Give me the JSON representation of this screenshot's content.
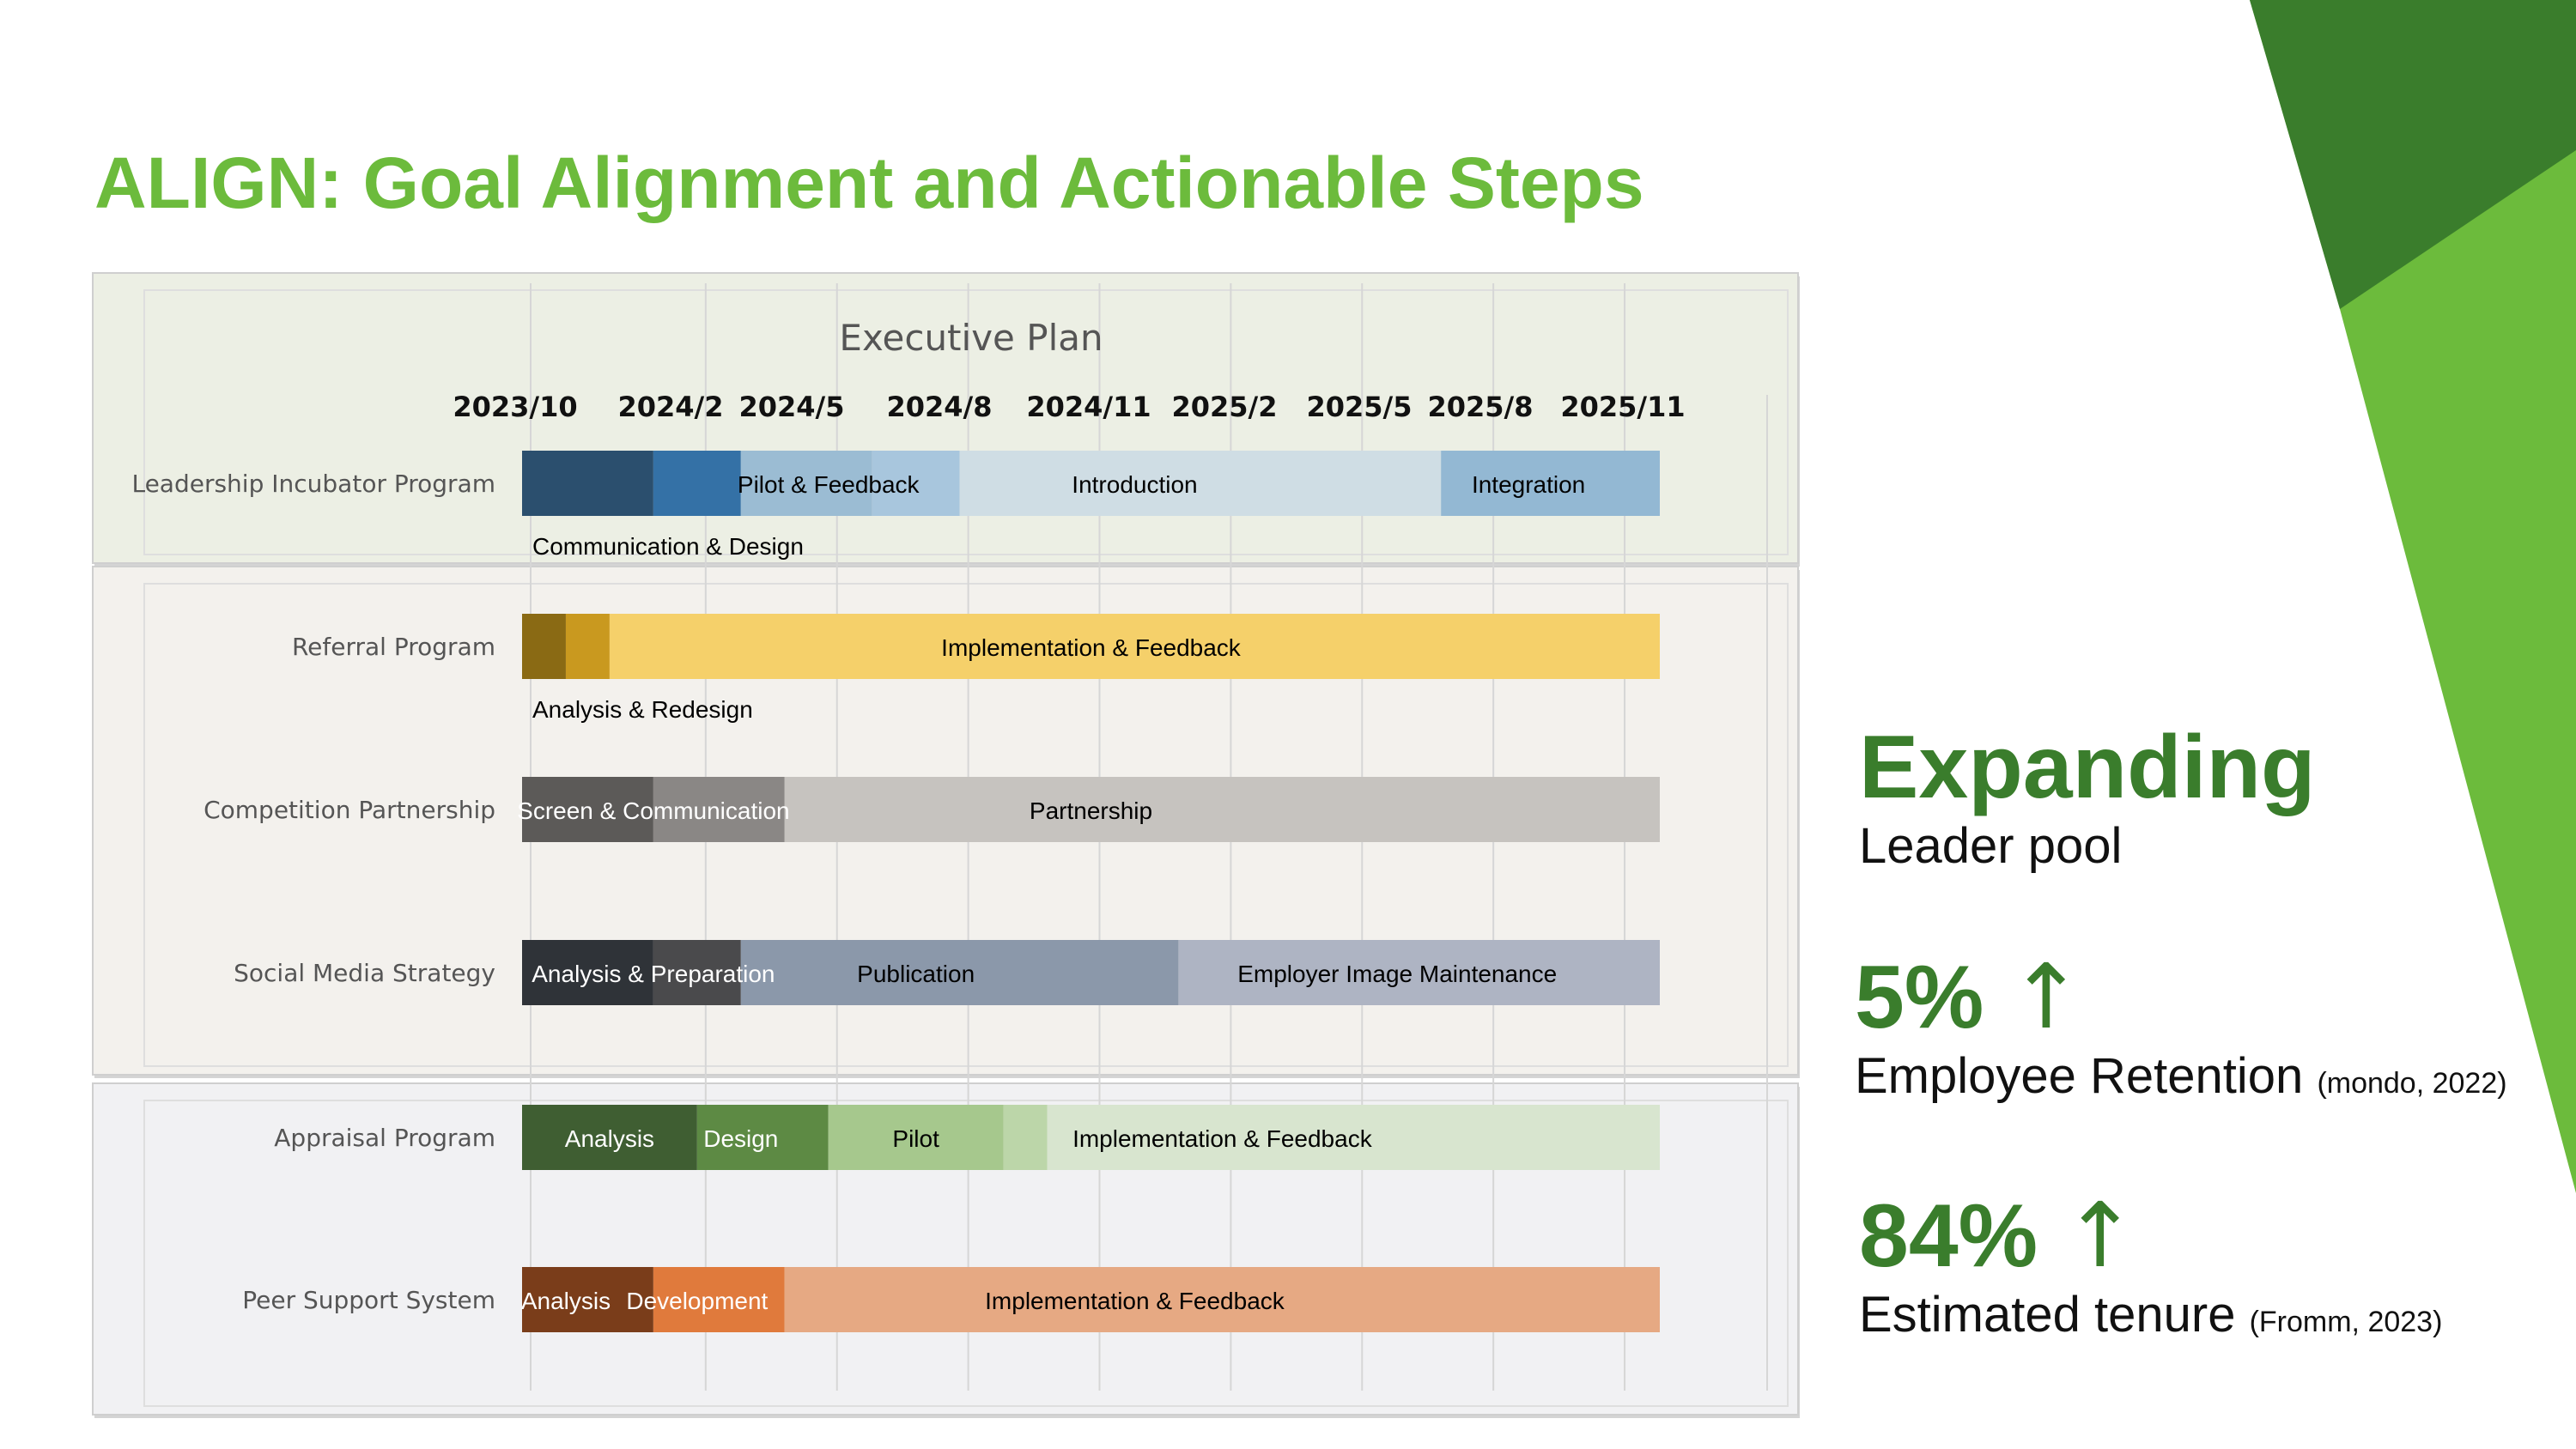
{
  "slide": {
    "title": "ALIGN: Goal Alignment and Actionable Steps"
  },
  "stats": {
    "expanding": {
      "headline": "Expanding",
      "label": "Leader pool"
    },
    "retention": {
      "value": "5%",
      "arrow": "↑",
      "label": "Employee Retention",
      "citation": "(mondo, 2022)"
    },
    "tenure": {
      "value": "84%",
      "arrow": "↑",
      "label": "Estimated tenure",
      "citation": "(Fromm, 2023)"
    }
  },
  "colors": {
    "title": "#6cbb3c",
    "accent_dark": "#3a7d2c",
    "accent_light": "#6cbb3c"
  },
  "chart_data": {
    "type": "gantt",
    "title": "Executive Plan",
    "x_ticks": [
      "2023/10",
      "2024/2",
      "2024/5",
      "2024/8",
      "2024/11",
      "2025/2",
      "2025/5",
      "2025/8",
      "2025/11"
    ],
    "xlim": [
      "2023/10",
      "2025/12"
    ],
    "rows": [
      {
        "program": "Leadership Incubator Program",
        "group": 1,
        "tasks": [
          {
            "name": "",
            "start": "2023/10",
            "end": "2024/1",
            "color": "#2b4f6e"
          },
          {
            "name": "",
            "start": "2024/1",
            "end": "2024/3",
            "color": "#3471a6"
          },
          {
            "name": "",
            "start": "2024/3",
            "end": "2024/6",
            "color": "#9bbcd3"
          },
          {
            "name": "",
            "start": "2024/6",
            "end": "2024/8",
            "color": "#a8c6dd"
          },
          {
            "name": "",
            "start": "2024/8",
            "end": "2025/7",
            "color": "#cfdde4"
          },
          {
            "name": "",
            "start": "2025/7",
            "end": "2025/12",
            "color": "#93b8d3"
          }
        ],
        "labels": [
          {
            "text": "Pilot & Feedback",
            "at": "2024/5",
            "color": "#000000",
            "below": false
          },
          {
            "text": "Introduction",
            "at": "2024/12",
            "color": "#000000",
            "below": false
          },
          {
            "text": "Integration",
            "at": "2025/9",
            "color": "#000000",
            "below": false
          },
          {
            "text": "Communication & Design",
            "at": "2024/1",
            "color": "#000000",
            "below": true
          }
        ]
      },
      {
        "program": "Referral Program",
        "group": 2,
        "tasks": [
          {
            "name": "",
            "start": "2023/10",
            "end": "2023/11",
            "color": "#8a6a14"
          },
          {
            "name": "",
            "start": "2023/11",
            "end": "2023/12",
            "color": "#c9991f"
          },
          {
            "name": "",
            "start": "2023/12",
            "end": "2025/12",
            "color": "#f5d06a"
          }
        ],
        "labels": [
          {
            "text": "Implementation & Feedback",
            "at": "2024/11",
            "color": "#000000",
            "below": false
          },
          {
            "text": "Analysis & Redesign",
            "at": "2024/1",
            "color": "#000000",
            "below": true
          }
        ]
      },
      {
        "program": "Competition Partnership",
        "group": 2,
        "tasks": [
          {
            "name": "",
            "start": "2023/10",
            "end": "2024/1",
            "color": "#5c5a58"
          },
          {
            "name": "",
            "start": "2024/1",
            "end": "2024/4",
            "color": "#8a8785"
          },
          {
            "name": "",
            "start": "2024/4",
            "end": "2025/12",
            "color": "#c6c3bf"
          }
        ],
        "labels": [
          {
            "text": "Screen & Communication",
            "at": "2024/1",
            "color": "#ffffff",
            "below": false
          },
          {
            "text": "Partnership",
            "at": "2024/11",
            "color": "#000000",
            "below": false
          }
        ]
      },
      {
        "program": "Social Media Strategy",
        "group": 2,
        "tasks": [
          {
            "name": "",
            "start": "2023/10",
            "end": "2024/1",
            "color": "#2f3338"
          },
          {
            "name": "",
            "start": "2024/1",
            "end": "2024/3",
            "color": "#4a4a4c"
          },
          {
            "name": "",
            "start": "2024/3",
            "end": "2025/1",
            "color": "#8b98aa"
          },
          {
            "name": "",
            "start": "2025/1",
            "end": "2025/12",
            "color": "#aeb4c3"
          }
        ],
        "labels": [
          {
            "text": "Analysis & Preparation",
            "at": "2024/1",
            "color": "#ffffff",
            "below": false
          },
          {
            "text": "Publication",
            "at": "2024/7",
            "color": "#000000",
            "below": false
          },
          {
            "text": "Employer Image Maintenance",
            "at": "2025/6",
            "color": "#000000",
            "below": false
          }
        ]
      },
      {
        "program": "Appraisal Program",
        "group": 3,
        "tasks": [
          {
            "name": "Analysis",
            "start": "2023/10",
            "end": "2024/2",
            "color": "#3f5e32"
          },
          {
            "name": "Design",
            "start": "2024/2",
            "end": "2024/5",
            "color": "#5d8a44"
          },
          {
            "name": "Pilot",
            "start": "2024/5",
            "end": "2024/9",
            "color": "#a6c88d"
          },
          {
            "name": "",
            "start": "2024/9",
            "end": "2024/10",
            "color": "#bcd6a9"
          },
          {
            "name": "Implementation & Feedback",
            "start": "2024/10",
            "end": "2025/12",
            "color": "#d8e5cf"
          }
        ],
        "labels": [
          {
            "text": "Analysis",
            "at": "2023/12",
            "color": "#ffffff",
            "below": false
          },
          {
            "text": "Design",
            "at": "2024/3",
            "color": "#ffffff",
            "below": false
          },
          {
            "text": "Pilot",
            "at": "2024/7",
            "color": "#000000",
            "below": false
          },
          {
            "text": "Implementation & Feedback",
            "at": "2025/2",
            "color": "#000000",
            "below": false
          }
        ]
      },
      {
        "program": "Peer Support System",
        "group": 3,
        "tasks": [
          {
            "name": "Analysis",
            "start": "2023/10",
            "end": "2024/1",
            "color": "#7a3d1a"
          },
          {
            "name": "Development",
            "start": "2024/1",
            "end": "2024/4",
            "color": "#e07a3c"
          },
          {
            "name": "Implementation & Feedback",
            "start": "2024/4",
            "end": "2025/12",
            "color": "#e6a983"
          }
        ],
        "labels": [
          {
            "text": "Analysis",
            "at": "2023/11",
            "color": "#ffffff",
            "below": false
          },
          {
            "text": "Development",
            "at": "2024/2",
            "color": "#ffffff",
            "below": false
          },
          {
            "text": "Implementation & Feedback",
            "at": "2024/12",
            "color": "#000000",
            "below": false
          }
        ]
      }
    ],
    "group_backgrounds": {
      "1": "#ecefe4",
      "2": "#f3f1ed",
      "3": "#f1f1f3"
    },
    "grid": true
  }
}
